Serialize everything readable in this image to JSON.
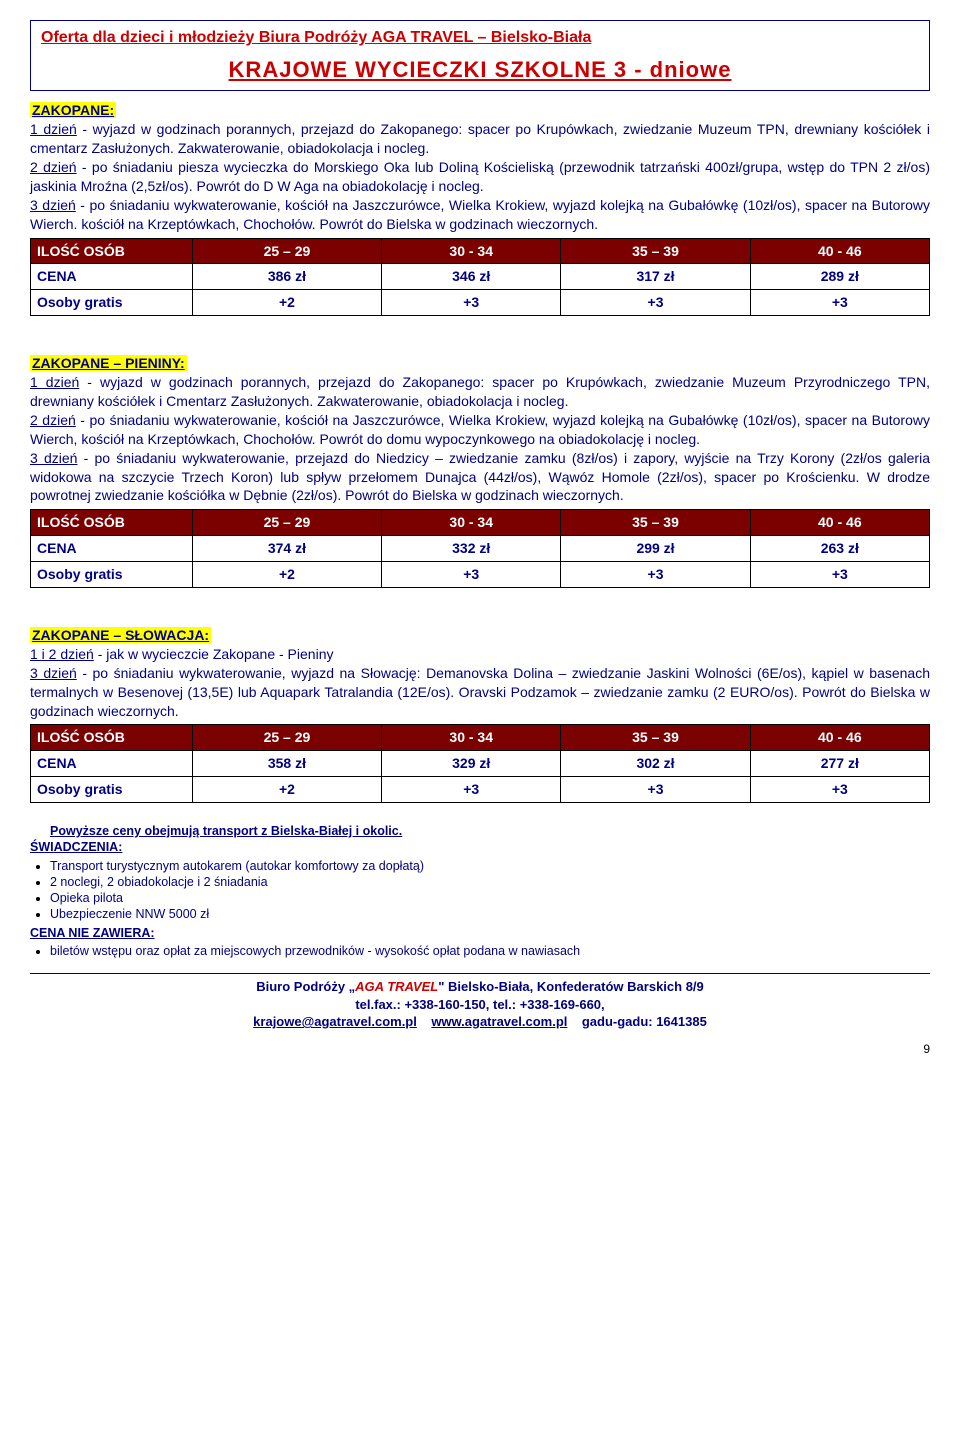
{
  "header": {
    "title": "Oferta dla dzieci i młodzieży Biura Podróży AGA TRAVEL – Bielsko-Biała",
    "subtitle": "KRAJOWE  WYCIECZKI  SZKOLNE   3 - dniowe"
  },
  "trips": [
    {
      "title": "ZAKOPANE:",
      "body_parts": [
        {
          "u": "1 dzień",
          "t": " - wyjazd w godzinach porannych, przejazd do Zakopanego: spacer po Krupówkach, zwiedzanie Muzeum TPN, drewniany kościółek i cmentarz Zasłużonych. Zakwaterowanie, obiadokolacja i nocleg."
        },
        {
          "u": "2 dzień",
          "t": " -  po śniadaniu  piesza wycieczka do Morskiego Oka lub Doliną Kościeliską (przewodnik tatrzański 400zł/grupa, wstęp do TPN 2 zł/os) jaskinia Mroźna (2,5zł/os). Powrót do D W Aga na obiadokolację i nocleg."
        },
        {
          "u": "3 dzień",
          "t": " -  po śniadaniu wykwaterowanie, kościół na Jaszczurówce, Wielka Krokiew, wyjazd kolejką na Gubałówkę (10zł/os), spacer na Butorowy  Wierch. kościół na Krzeptówkach, Chochołów. Powrót do Bielska w godzinach wieczornych."
        }
      ],
      "table": {
        "header": [
          "ILOŚĆ OSÓB",
          "25 – 29",
          "30 - 34",
          "35 – 39",
          "40 - 46"
        ],
        "rows": [
          [
            "CENA",
            "386 zł",
            "346 zł",
            "317 zł",
            "289 zł"
          ],
          [
            "Osoby gratis",
            "+2",
            "+3",
            "+3",
            "+3"
          ]
        ]
      }
    },
    {
      "title": "ZAKOPANE – PIENINY:",
      "body_parts": [
        {
          "u": "1 dzień",
          "t": " - wyjazd w godzinach porannych, przejazd do Zakopanego: spacer po Krupówkach, zwiedzanie Muzeum Przyrodniczego TPN, drewniany kościółek i Cmentarz Zasłużonych. Zakwaterowanie, obiadokolacja i nocleg."
        },
        {
          "u": "2 dzień",
          "t": " - po śniadaniu wykwaterowanie, kościół na Jaszczurówce, Wielka Krokiew, wyjazd kolejką na Gubałówkę (10zł/os), spacer na Butorowy  Wierch, kościół na Krzeptówkach, Chochołów. Powrót do domu wypoczynkowego na obiadokolację i nocleg."
        },
        {
          "u": "3 dzień",
          "t": " - po śniadaniu wykwaterowanie, przejazd do Niedzicy – zwiedzanie zamku (8zł/os) i zapory, wyjście na Trzy Korony (2zł/os galeria widokowa na szczycie Trzech Koron) lub spływ przełomem Dunajca (44zł/os), Wąwóz Homole (2zł/os), spacer po Krościenku.  W drodze powrotnej zwiedzanie kościółka w Dębnie (2zł/os). Powrót do Bielska w godzinach wieczornych."
        }
      ],
      "table": {
        "header": [
          "ILOŚĆ OSÓB",
          "25 – 29",
          "30 - 34",
          "35 – 39",
          "40 - 46"
        ],
        "rows": [
          [
            "CENA",
            "374 zł",
            "332 zł",
            "299 zł",
            "263 zł"
          ],
          [
            "Osoby gratis",
            "+2",
            "+3",
            "+3",
            "+3"
          ]
        ]
      }
    },
    {
      "title": "ZAKOPANE – SŁOWACJA:",
      "body_parts": [
        {
          "u": "1 i 2  dzień",
          "t": " -  jak w wycieczcie Zakopane - Pieniny"
        },
        {
          "u": "3 dzień",
          "t": " -  po śniadaniu wykwaterowanie, wyjazd na Słowację: Demanovska Dolina – zwiedzanie Jaskini Wolności (6E/os), kąpiel w basenach termalnych w Besenovej (13,5E) lub Aquapark Tatralandia (12E/os). Oravski Podzamok – zwiedzanie zamku  (2 EURO/os). Powrót do Bielska  w godzinach wieczornych."
        }
      ],
      "table": {
        "header": [
          "ILOŚĆ OSÓB",
          "25 – 29",
          "30 - 34",
          "35 – 39",
          "40 - 46"
        ],
        "rows": [
          [
            "CENA",
            "358 zł",
            "329 zł",
            "302 zł",
            "277 zł"
          ],
          [
            "Osoby gratis",
            "+2",
            "+3",
            "+3",
            "+3"
          ]
        ]
      }
    }
  ],
  "notes": {
    "transport_line": "Powyższe ceny obejmują transport z Bielska-Białej i okolic.",
    "services_title": "ŚWIADCZENIA:",
    "services": [
      "Transport turystycznym  autokarem (autokar komfortowy za dopłatą)",
      "2 noclegi, 2 obiadokolacje i 2  śniadania",
      "Opieka pilota",
      "Ubezpieczenie NNW  5000 zł"
    ],
    "excludes_title": "CENA NIE ZAWIERA:",
    "excludes": [
      "biletów wstępu oraz opłat za miejscowych przewodników - wysokość opłat podana w nawiasach"
    ]
  },
  "footer": {
    "line1_pre": "Biuro Podróży „",
    "brand": "AGA TRAVEL",
    "line1_post": "\" Bielsko-Biała, Konfederatów Barskich 8/9",
    "line2": "tel.fax.: +338-160-150, tel.: +338-169-660,",
    "email": "krajowe@agatravel.com.pl",
    "www": "www.agatravel.com.pl",
    "gadu": "gadu-gadu: 1641385"
  },
  "page_number": "9",
  "colors": {
    "brand_red": "#cc0000",
    "navy": "#000080",
    "table_header_bg": "#7b0000",
    "highlight": "#ffff00"
  }
}
